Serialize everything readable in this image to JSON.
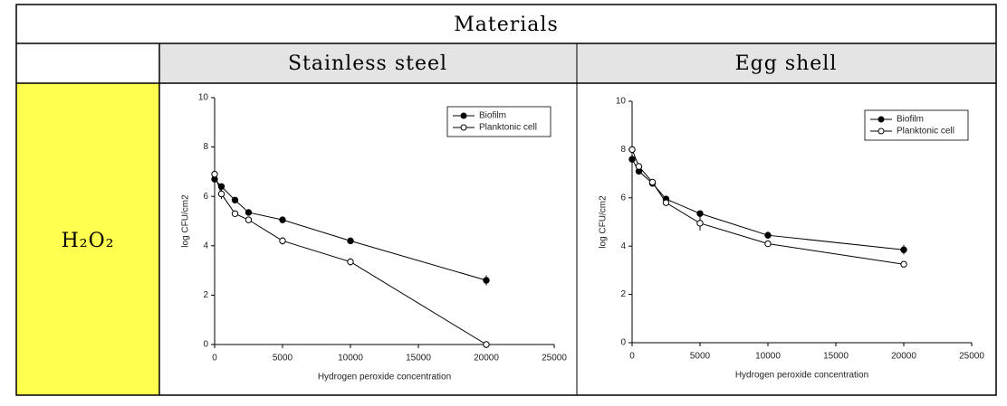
{
  "table": {
    "title": "Materials",
    "header": [
      "Stainless steel",
      "Egg shell"
    ],
    "row_label": "H₂O₂"
  },
  "chart_data": [
    {
      "type": "line",
      "xlabel": "Hydrogen peroxide concentration",
      "ylabel": "log CFU/cm2",
      "x": [
        0,
        500,
        1500,
        2500,
        5000,
        10000,
        20000
      ],
      "xlim": [
        0,
        25000
      ],
      "xticks": [
        0,
        5000,
        10000,
        15000,
        20000,
        25000
      ],
      "ylim": [
        0,
        10
      ],
      "yticks": [
        0,
        2,
        4,
        6,
        8,
        10
      ],
      "legend": "upper right",
      "series": [
        {
          "name": "Biofilm",
          "color": "#000000",
          "marker_fill": "#000000",
          "values": [
            6.7,
            6.4,
            5.85,
            5.35,
            5.05,
            4.2,
            2.6
          ],
          "errors": [
            0.15,
            0.1,
            0.1,
            0.1,
            0.05,
            0.1,
            0.2
          ]
        },
        {
          "name": "Planktonic cell",
          "color": "#000000",
          "marker_fill": "#ffffff",
          "values": [
            6.9,
            6.1,
            5.3,
            5.05,
            4.2,
            3.35,
            0
          ],
          "errors": [
            0.2,
            0.2,
            0.1,
            0.05,
            0.15,
            0.15,
            0.05
          ]
        }
      ]
    },
    {
      "type": "line",
      "xlabel": "Hydrogen peroxide concentration",
      "ylabel": "log CFU/cm2",
      "x": [
        0,
        500,
        1500,
        2500,
        5000,
        10000,
        20000
      ],
      "xlim": [
        0,
        25000
      ],
      "xticks": [
        0,
        5000,
        10000,
        15000,
        20000,
        25000
      ],
      "ylim": [
        0,
        10
      ],
      "yticks": [
        0,
        2,
        4,
        6,
        8,
        10
      ],
      "legend": "upper right",
      "series": [
        {
          "name": "Biofilm",
          "color": "#000000",
          "marker_fill": "#000000",
          "values": [
            7.6,
            7.1,
            6.6,
            5.95,
            5.35,
            4.45,
            3.85
          ],
          "errors": [
            0.15,
            0.1,
            0.1,
            0.1,
            0.1,
            0.15,
            0.2
          ]
        },
        {
          "name": "Planktonic cell",
          "color": "#000000",
          "marker_fill": "#ffffff",
          "values": [
            8.0,
            7.3,
            6.65,
            5.8,
            4.95,
            4.1,
            3.25
          ],
          "errors": [
            0.1,
            0.1,
            0.1,
            0.1,
            0.3,
            0.1,
            0.1
          ]
        }
      ]
    }
  ]
}
